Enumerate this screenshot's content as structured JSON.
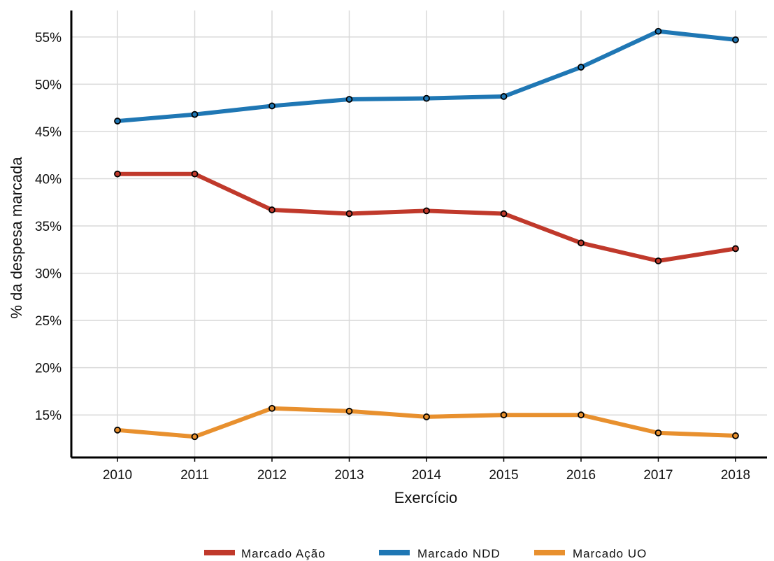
{
  "chart_data": {
    "type": "line",
    "title": "",
    "xlabel": "Exercício",
    "ylabel": "% da despesa marcada",
    "x": [
      "2010",
      "2011",
      "2012",
      "2013",
      "2014",
      "2015",
      "2016",
      "2017",
      "2018"
    ],
    "ylim": [
      10.5,
      57.8
    ],
    "yticks": [
      15,
      20,
      25,
      30,
      35,
      40,
      45,
      50,
      55
    ],
    "ytick_labels": [
      "15%",
      "20%",
      "25%",
      "30%",
      "35%",
      "40%",
      "45%",
      "50%",
      "55%"
    ],
    "grid": true,
    "legend_position": "bottom",
    "series": [
      {
        "name": "Marcado Ação",
        "color": "#c0392b",
        "values": [
          40.5,
          40.5,
          36.7,
          36.3,
          36.6,
          36.3,
          33.2,
          31.3,
          32.6
        ]
      },
      {
        "name": "Marcado NDD",
        "color": "#1f77b4",
        "values": [
          46.1,
          46.8,
          47.7,
          48.4,
          48.5,
          48.7,
          51.8,
          55.6,
          54.7
        ]
      },
      {
        "name": "Marcado UO",
        "color": "#e8902e",
        "values": [
          13.4,
          12.7,
          15.7,
          15.4,
          14.8,
          15.0,
          15.0,
          13.1,
          12.8
        ]
      }
    ]
  }
}
